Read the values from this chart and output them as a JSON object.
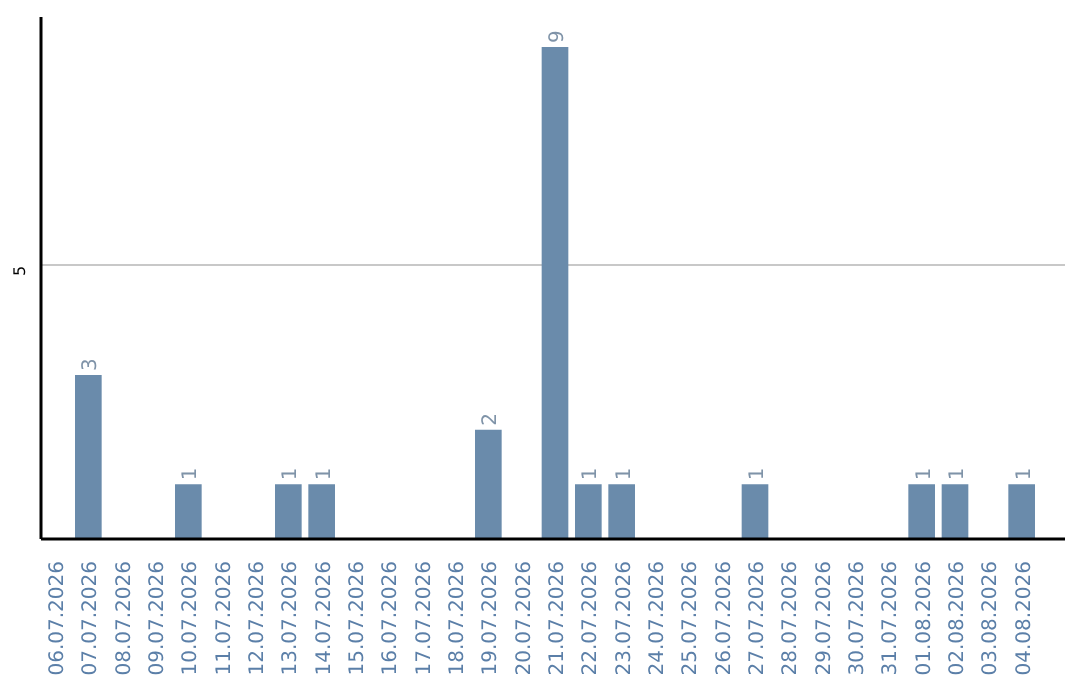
{
  "chart_data": {
    "type": "bar",
    "categories": [
      "06.07.2026",
      "07.07.2026",
      "08.07.2026",
      "09.07.2026",
      "10.07.2026",
      "11.07.2026",
      "12.07.2026",
      "13.07.2026",
      "14.07.2026",
      "15.07.2026",
      "16.07.2026",
      "17.07.2026",
      "18.07.2026",
      "19.07.2026",
      "20.07.2026",
      "21.07.2026",
      "22.07.2026",
      "23.07.2026",
      "24.07.2026",
      "25.07.2026",
      "26.07.2026",
      "27.07.2026",
      "28.07.2026",
      "29.07.2026",
      "30.07.2026",
      "31.07.2026",
      "01.08.2026",
      "02.08.2026",
      "03.08.2026",
      "04.08.2026"
    ],
    "values": [
      0,
      3,
      0,
      0,
      1,
      0,
      0,
      1,
      1,
      0,
      0,
      0,
      0,
      2,
      0,
      9,
      1,
      1,
      0,
      0,
      0,
      1,
      0,
      0,
      0,
      0,
      1,
      1,
      0,
      1
    ],
    "value_labels": [
      null,
      "3",
      null,
      null,
      "1",
      null,
      null,
      "1",
      "1",
      null,
      null,
      null,
      null,
      "2",
      null,
      "9",
      "1",
      "1",
      null,
      null,
      null,
      "1",
      null,
      null,
      null,
      null,
      "1",
      "1",
      null,
      "1"
    ],
    "color": "#6a8bab",
    "ylim": [
      0,
      9.55
    ],
    "yticks": [
      5
    ],
    "grid": "y"
  }
}
